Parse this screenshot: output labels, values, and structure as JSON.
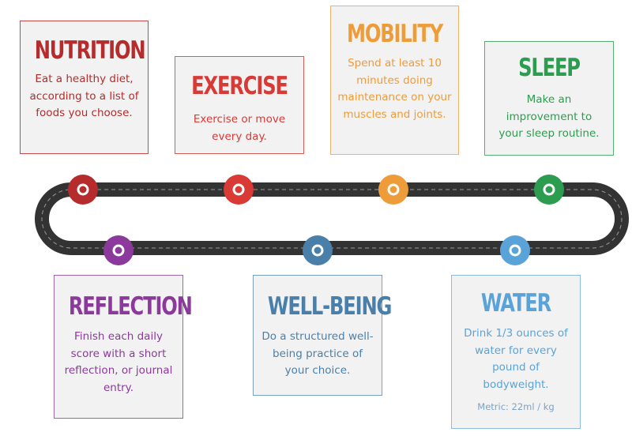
{
  "steps": {
    "nutrition": {
      "title": "NUTRITION",
      "text": "Eat a healthy diet, according to a list of foods you choose.",
      "color": "#b62b2b"
    },
    "exercise": {
      "title": "EXERCISE",
      "text": "Exercise or move every day.",
      "color": "#d93a36"
    },
    "mobility": {
      "title": "MOBILITY",
      "text": "Spend at least 10 minutes doing maintenance on your muscles and joints.",
      "color": "#ee9b3a"
    },
    "sleep": {
      "title": "SLEEP",
      "text": "Make an improvement to your sleep routine.",
      "color": "#2c9d4e"
    },
    "reflection": {
      "title": "REFLECTION",
      "text": "Finish each daily score with a short reflection, or journal entry.",
      "color": "#8b3a9b"
    },
    "wellbeing": {
      "title": "WELL-BEING",
      "text": "Do a structured well-being practice of your choice.",
      "color": "#4a7faa"
    },
    "water": {
      "title": "WATER",
      "text": "Drink 1/3 ounces of water for every pound of bodyweight.",
      "note": "Metric: 22ml / kg",
      "color": "#5aa3d8",
      "note_color": "#7aa3c8"
    }
  },
  "track_color": "#333333"
}
